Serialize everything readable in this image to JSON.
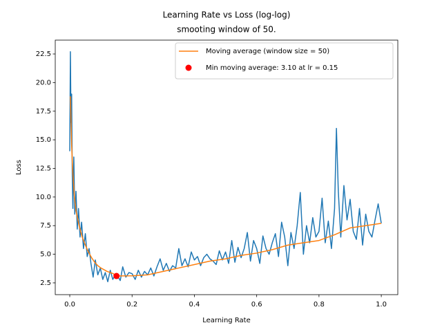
{
  "chart_data": {
    "type": "line",
    "title": "Learning Rate vs Loss (log-log)",
    "subtitle": "smooting window of 50.",
    "xlabel": "Learning Rate",
    "ylabel": "Loss",
    "xlim": [
      -0.0466,
      1.053
    ],
    "ylim": [
      1.47,
      23.71
    ],
    "xticks": [
      {
        "value": 0,
        "label": "0.0"
      },
      0.2,
      0.4,
      0.6,
      0.8,
      {
        "value": 1,
        "label": "1.0"
      }
    ],
    "yticks": [
      2.5,
      {
        "value": 5,
        "label": "5.0"
      },
      7.5,
      {
        "value": 10,
        "label": "10.0"
      },
      12.5,
      {
        "value": 15,
        "label": "15.0"
      },
      17.5,
      {
        "value": 20,
        "label": "20.0"
      },
      22.5
    ],
    "legend": "upper right",
    "series": [
      {
        "color": "#1f77b4",
        "x": [
          0,
          0.002,
          0.004,
          0.006,
          0.008,
          0.01,
          0.013,
          0.016,
          0.02,
          0.024,
          0.028,
          0.033,
          0.038,
          0.044,
          0.05,
          0.056,
          0.062,
          0.068,
          0.075,
          0.082,
          0.09,
          0.098,
          0.106,
          0.114,
          0.122,
          0.13,
          0.138,
          0.146,
          0.154,
          0.162,
          0.17,
          0.18,
          0.19,
          0.2,
          0.21,
          0.22,
          0.23,
          0.24,
          0.25,
          0.26,
          0.27,
          0.28,
          0.29,
          0.3,
          0.31,
          0.32,
          0.33,
          0.34,
          0.35,
          0.36,
          0.37,
          0.38,
          0.39,
          0.4,
          0.41,
          0.42,
          0.43,
          0.44,
          0.45,
          0.46,
          0.47,
          0.48,
          0.49,
          0.5,
          0.51,
          0.52,
          0.53,
          0.54,
          0.55,
          0.56,
          0.57,
          0.58,
          0.59,
          0.6,
          0.61,
          0.62,
          0.63,
          0.64,
          0.65,
          0.66,
          0.67,
          0.68,
          0.69,
          0.7,
          0.71,
          0.72,
          0.73,
          0.74,
          0.75,
          0.76,
          0.77,
          0.78,
          0.79,
          0.8,
          0.81,
          0.82,
          0.83,
          0.84,
          0.85,
          0.856,
          0.862,
          0.87,
          0.88,
          0.89,
          0.9,
          0.91,
          0.92,
          0.93,
          0.94,
          0.95,
          0.96,
          0.97,
          0.98,
          0.99,
          1
        ],
        "values": [
          14.0,
          22.7,
          16.5,
          19.0,
          12.0,
          9.0,
          13.5,
          8.5,
          10.5,
          7.2,
          9.0,
          6.5,
          7.8,
          5.5,
          6.8,
          4.8,
          5.5,
          4.2,
          3.0,
          4.5,
          3.2,
          3.8,
          2.8,
          3.4,
          2.6,
          3.6,
          2.8,
          3.2,
          3.1,
          2.7,
          3.9,
          3.0,
          3.4,
          3.3,
          2.8,
          3.6,
          3.0,
          3.5,
          3.2,
          3.8,
          3.1,
          3.9,
          4.6,
          3.6,
          4.2,
          3.5,
          4.0,
          3.8,
          5.5,
          4.0,
          4.6,
          3.9,
          5.2,
          4.5,
          4.8,
          4.0,
          4.7,
          5.0,
          4.6,
          4.4,
          4.1,
          5.3,
          4.5,
          5.2,
          4.2,
          6.2,
          4.3,
          5.6,
          4.7,
          5.5,
          6.9,
          4.4,
          6.2,
          5.5,
          4.2,
          6.6,
          5.5,
          5.0,
          6.0,
          6.8,
          4.8,
          7.8,
          6.5,
          4.0,
          6.9,
          5.5,
          7.5,
          10.4,
          5.0,
          7.5,
          6.0,
          8.2,
          6.5,
          7.0,
          9.9,
          6.0,
          7.9,
          5.5,
          9.0,
          16.0,
          10.5,
          6.5,
          11.0,
          8.0,
          9.8,
          7.0,
          6.3,
          9.0,
          5.8,
          8.5,
          7.0,
          6.5,
          8.0,
          9.4,
          7.7
        ]
      },
      {
        "name": "Moving average (window size = 50)",
        "color": "#ff7f0e",
        "x": [
          0.002,
          0.006,
          0.01,
          0.015,
          0.02,
          0.03,
          0.04,
          0.05,
          0.06,
          0.07,
          0.08,
          0.09,
          0.1,
          0.12,
          0.14,
          0.15,
          0.17,
          0.2,
          0.25,
          0.3,
          0.35,
          0.4,
          0.45,
          0.5,
          0.55,
          0.6,
          0.65,
          0.7,
          0.75,
          0.8,
          0.85,
          0.9,
          0.95,
          1
        ],
        "values": [
          18.8,
          14.5,
          12.0,
          10.0,
          8.8,
          7.5,
          6.5,
          5.8,
          5.2,
          4.7,
          4.3,
          4.0,
          3.8,
          3.5,
          3.3,
          3.1,
          3.11,
          3.12,
          3.2,
          3.5,
          3.8,
          4.1,
          4.4,
          4.6,
          4.9,
          5.1,
          5.4,
          5.8,
          6.0,
          6.2,
          6.7,
          7.3,
          7.5,
          7.7
        ]
      }
    ],
    "scatter": {
      "name": "Min moving average: 3.10 at lr = 0.15",
      "color": "#ff0000",
      "x": [
        0.15
      ],
      "values": [
        3.1
      ]
    }
  }
}
